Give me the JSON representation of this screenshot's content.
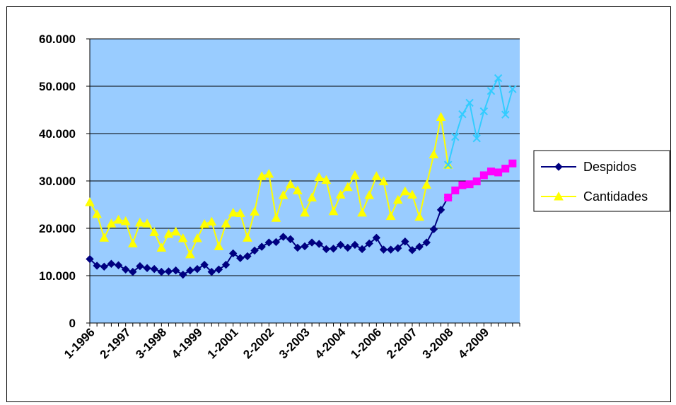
{
  "chart_data": {
    "type": "line",
    "title": "",
    "xlabel": "",
    "ylabel": "",
    "ylim": [
      0,
      60000
    ],
    "y_ticks": [
      0,
      10000,
      20000,
      30000,
      40000,
      50000,
      60000
    ],
    "y_tick_labels": [
      "0",
      "10.000",
      "20.000",
      "30.000",
      "40.000",
      "50.000",
      "60.000"
    ],
    "x_tick_labels": [
      {
        "index": 0,
        "label": "1-1996"
      },
      {
        "index": 5,
        "label": "2-1997"
      },
      {
        "index": 10,
        "label": "3-1998"
      },
      {
        "index": 15,
        "label": "4-1999"
      },
      {
        "index": 20,
        "label": "1-2001"
      },
      {
        "index": 25,
        "label": "2-2002"
      },
      {
        "index": 30,
        "label": "3-2003"
      },
      {
        "index": 35,
        "label": "4-2004"
      },
      {
        "index": 40,
        "label": "1-2006"
      },
      {
        "index": 45,
        "label": "2-2007"
      },
      {
        "index": 50,
        "label": "3-2008"
      },
      {
        "index": 55,
        "label": "4-2009"
      }
    ],
    "n_periods": 61,
    "grid": true,
    "background_color": "#99CCFF",
    "legend_position": "right",
    "series": [
      {
        "name": "Despidos",
        "color": "#000080",
        "marker": "diamond",
        "start_index": 0,
        "values": [
          13500,
          12100,
          11900,
          12500,
          12200,
          11300,
          10800,
          12000,
          11600,
          11400,
          10800,
          10900,
          11100,
          10200,
          11100,
          11400,
          12300,
          10800,
          11300,
          12300,
          14700,
          13700,
          14100,
          15300,
          16100,
          17000,
          17100,
          18200,
          17700,
          15900,
          16200,
          17000,
          16700,
          15600,
          15700,
          16500,
          15900,
          16500,
          15600,
          16800,
          18000,
          15500,
          15500,
          15800,
          17200,
          15400,
          16100,
          17000,
          19800,
          23900,
          26500
        ]
      },
      {
        "name": "Cantidades",
        "color": "#FFFF00",
        "marker": "triangle",
        "start_index": 0,
        "values": [
          25500,
          23000,
          18000,
          21000,
          21800,
          21500,
          16800,
          21200,
          21000,
          19200,
          15900,
          18800,
          19300,
          17900,
          14500,
          17900,
          20900,
          21400,
          16200,
          21000,
          23300,
          23200,
          18000,
          23500,
          31000,
          31500,
          22200,
          27000,
          29300,
          28000,
          23300,
          26500,
          30800,
          30200,
          23600,
          27100,
          28700,
          31200,
          23300,
          27000,
          31000,
          29900,
          22600,
          26000,
          27800,
          27100,
          22400,
          29200,
          35600,
          43500,
          33400
        ]
      },
      {
        "name": "",
        "color": "#FF00FF",
        "marker": "square",
        "start_index": 50,
        "values": [
          26500,
          28000,
          29100,
          29300,
          29900,
          31200,
          32000,
          31800,
          32600,
          33700
        ]
      },
      {
        "name": "",
        "color": "#33CCFF",
        "marker": "x",
        "start_index": 50,
        "values": [
          33400,
          39300,
          44100,
          46500,
          39000,
          44700,
          49000,
          51700,
          44000,
          49400
        ]
      }
    ]
  }
}
